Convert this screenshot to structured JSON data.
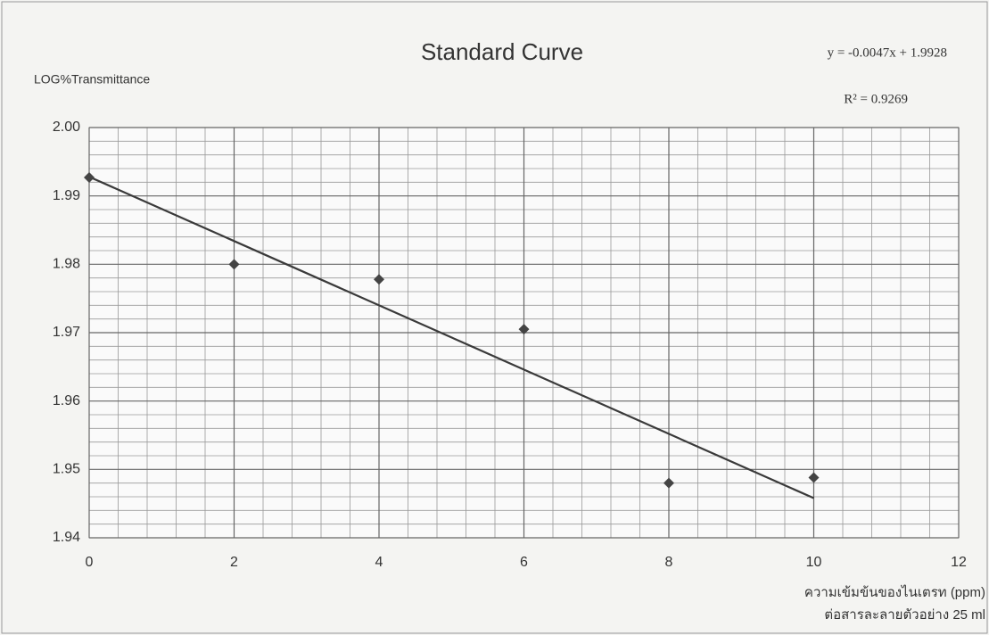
{
  "chart_data": {
    "type": "scatter",
    "title": "Standard Curve",
    "y_label": "LOG%Transmittance",
    "x_label": [
      "ความเข้มข้นของไนเตรท (ppm)",
      "ต่อสารละลายตัวอย่าง 25 ml"
    ],
    "annotations": [
      "y = -0.0047x + 1.9928",
      "R² = 0.9269"
    ],
    "x": [
      0,
      2,
      4,
      6,
      8,
      10
    ],
    "values": [
      1.9927,
      1.98,
      1.9778,
      1.9705,
      1.948,
      1.9488
    ],
    "color": "#444444",
    "trendline": {
      "x": [
        0,
        10
      ],
      "values": [
        1.9928,
        1.9458
      ],
      "color": "#3a3a3a"
    },
    "xlim": [
      0,
      12
    ],
    "xticks": [
      0,
      2,
      4,
      6,
      8,
      10,
      12
    ],
    "ylim": [
      1.94,
      2.0
    ],
    "yticks": [
      1.94,
      1.95,
      1.96,
      1.97,
      1.98,
      1.99,
      {
        "value": 2.0,
        "label": "2.00"
      }
    ],
    "grid": true,
    "minor_grid": true
  }
}
